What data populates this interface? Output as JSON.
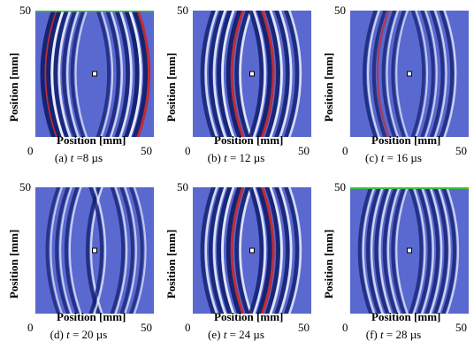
{
  "figure": {
    "axis": {
      "ylabel": "Position [mm]",
      "xlabel": "Position [mm]",
      "tick_min": "0",
      "tick_max": "50"
    },
    "colors": {
      "background": "#5a69cf",
      "dark_band": "#12206e",
      "light_band": "#f2f4fb",
      "red_band": "#c82828",
      "top_edge": "#3fbf3f"
    },
    "panels": [
      {
        "letter": "(a)",
        "tvar": "t",
        "rest": " =8 µs",
        "time_us": 8,
        "bands": "edges-strong"
      },
      {
        "letter": "(b)",
        "tvar": "t",
        "rest": " = 12 µs",
        "time_us": 12,
        "bands": "mid-strong"
      },
      {
        "letter": "(c)",
        "tvar": "t",
        "rest": " = 16 µs",
        "time_us": 16,
        "bands": "faint"
      },
      {
        "letter": "(d)",
        "tvar": "t",
        "rest": " = 20 µs",
        "time_us": 20,
        "bands": "faint-center"
      },
      {
        "letter": "(e)",
        "tvar": "t",
        "rest": " = 24 µs",
        "time_us": 24,
        "bands": "mid-strong"
      },
      {
        "letter": "(f)",
        "tvar": "t",
        "rest": " = 28 µs",
        "time_us": 28,
        "bands": "dense"
      }
    ]
  }
}
